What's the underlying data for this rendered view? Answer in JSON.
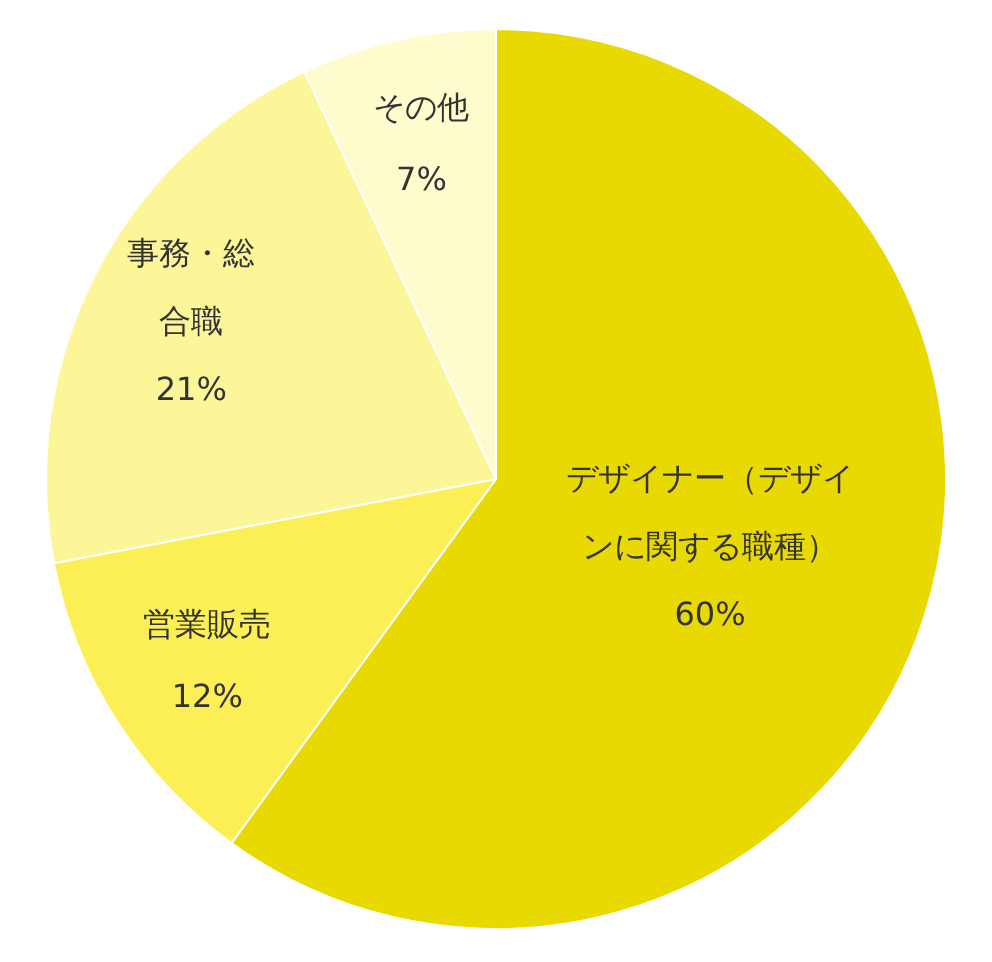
{
  "chart_data": {
    "type": "pie",
    "categories": [
      "デザイナー（デザインに関する職種）",
      "営業販売",
      "事務・総合職",
      "その他"
    ],
    "values": [
      60,
      12,
      21,
      7
    ],
    "colors": [
      "#e8d900",
      "#fcef55",
      "#fdf699",
      "#fefbcc"
    ],
    "value_labels": [
      "60%",
      "12%",
      "21%",
      "7%"
    ],
    "legend": false
  }
}
